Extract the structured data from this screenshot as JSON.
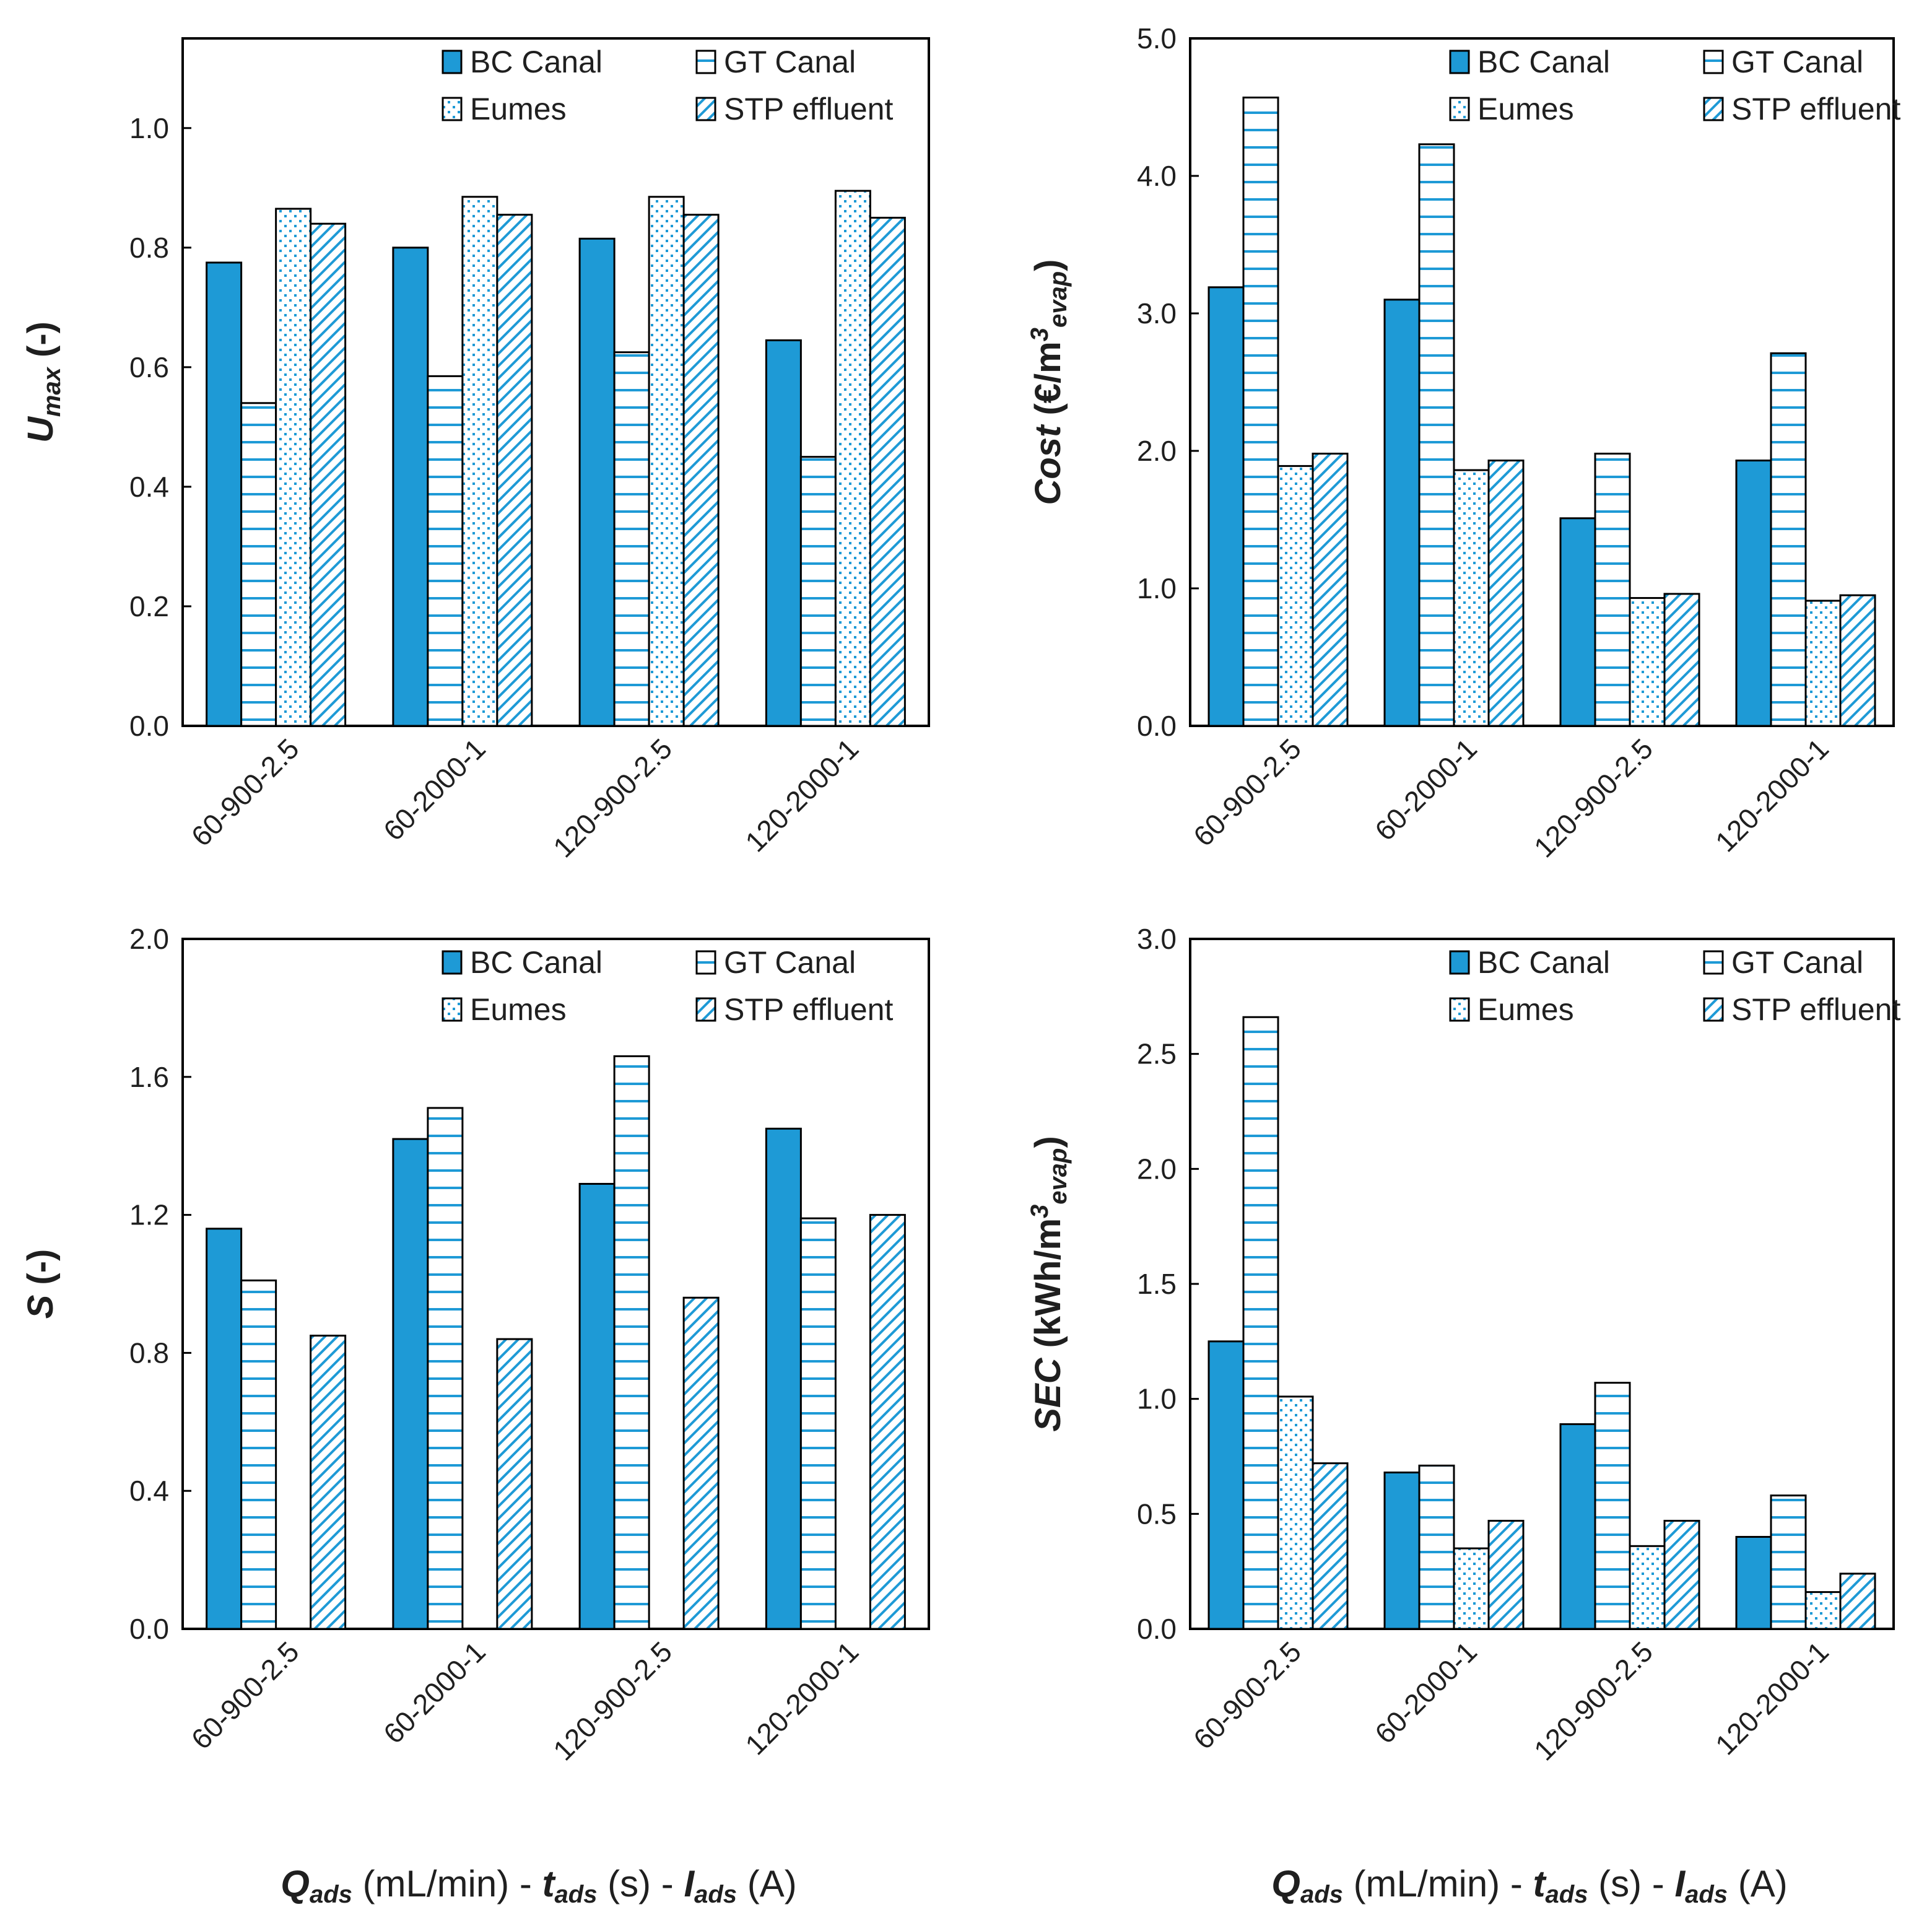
{
  "chart_data": [
    {
      "type": "bar",
      "categories": [
        "60-900-2.5",
        "60-2000-1",
        "120-900-2.5",
        "120-2000-1"
      ],
      "series": [
        {
          "name": "BC Canal",
          "values": [
            0.775,
            0.8,
            0.815,
            0.645
          ]
        },
        {
          "name": "GT Canal",
          "values": [
            0.54,
            0.585,
            0.625,
            0.45
          ]
        },
        {
          "name": "Eumes",
          "values": [
            0.865,
            0.885,
            0.885,
            0.895
          ]
        },
        {
          "name": "STP effluent",
          "values": [
            0.84,
            0.855,
            0.855,
            0.85
          ]
        }
      ],
      "ylabel_main": "U",
      "ylabel_sub": "max",
      "ylabel_rest": " (-)",
      "ylim": [
        0,
        1.15
      ],
      "yticks": [
        "0.0",
        "0.2",
        "0.4",
        "0.6",
        "0.8",
        "1.0"
      ],
      "legend_position": "top-right"
    },
    {
      "type": "bar",
      "categories": [
        "60-900-2.5",
        "60-2000-1",
        "120-900-2.5",
        "120-2000-1"
      ],
      "series": [
        {
          "name": "BC Canal",
          "values": [
            3.19,
            3.1,
            1.51,
            1.93
          ]
        },
        {
          "name": "GT Canal",
          "values": [
            4.57,
            4.23,
            1.98,
            2.71
          ]
        },
        {
          "name": "Eumes",
          "values": [
            1.89,
            1.86,
            0.93,
            0.91
          ]
        },
        {
          "name": "STP effluent",
          "values": [
            1.98,
            1.93,
            0.96,
            0.95
          ]
        }
      ],
      "ylabel_main": "Cost",
      "ylabel_rest": " (€/m",
      "ylabel_sup": "3",
      "ylabel_sub": "evap",
      "ylabel_end": ")",
      "ylim": [
        0,
        5.0
      ],
      "yticks": [
        "0.0",
        "1.0",
        "2.0",
        "3.0",
        "4.0",
        "5.0"
      ],
      "legend_position": "top-right"
    },
    {
      "type": "bar",
      "categories": [
        "60-900-2.5",
        "60-2000-1",
        "120-900-2.5",
        "120-2000-1"
      ],
      "series": [
        {
          "name": "BC Canal",
          "values": [
            1.16,
            1.42,
            1.29,
            1.45
          ]
        },
        {
          "name": "GT Canal",
          "values": [
            1.01,
            1.51,
            1.66,
            1.19
          ]
        },
        {
          "name": "Eumes",
          "values": [
            0,
            0,
            0,
            0
          ]
        },
        {
          "name": "STP effluent",
          "values": [
            0.85,
            0.84,
            0.96,
            1.2
          ]
        }
      ],
      "ylabel_main": "S",
      "ylabel_rest": " (-)",
      "ylim": [
        0,
        2.0
      ],
      "yticks": [
        "0.0",
        "0.4",
        "0.8",
        "1.2",
        "1.6",
        "2.0"
      ],
      "legend_position": "top-right"
    },
    {
      "type": "bar",
      "categories": [
        "60-900-2.5",
        "60-2000-1",
        "120-900-2.5",
        "120-2000-1"
      ],
      "series": [
        {
          "name": "BC Canal",
          "values": [
            1.25,
            0.68,
            0.89,
            0.4
          ]
        },
        {
          "name": "GT Canal",
          "values": [
            2.66,
            0.71,
            1.07,
            0.58
          ]
        },
        {
          "name": "Eumes",
          "values": [
            1.01,
            0.35,
            0.36,
            0.16
          ]
        },
        {
          "name": "STP effluent",
          "values": [
            0.72,
            0.47,
            0.47,
            0.24
          ]
        }
      ],
      "ylabel_main": "SEC",
      "ylabel_rest": " (kWh/m",
      "ylabel_sup": "3",
      "ylabel_sub": "evap",
      "ylabel_end": ")",
      "ylim": [
        0,
        3.0
      ],
      "yticks": [
        "0.0",
        "0.5",
        "1.0",
        "1.5",
        "2.0",
        "2.5",
        "3.0"
      ],
      "legend_position": "top-right"
    }
  ],
  "xaxis_title": {
    "q": "Q",
    "q_sub": "ads",
    "q_unit": " (mL/min) - ",
    "t": "t",
    "t_sub": "ads",
    "t_unit": " (s) - ",
    "i": "I",
    "i_sub": "ads",
    "i_unit": " (A)"
  },
  "colors": {
    "bc_canal": "#1e9ad6",
    "pattern": "#1e9ad6",
    "frame": "#000000"
  },
  "patterns": {
    "bc_canal": "solid",
    "gt_canal": "horizontal-lines",
    "eumes": "dots",
    "stp_effluent": "diagonal-hatch"
  }
}
